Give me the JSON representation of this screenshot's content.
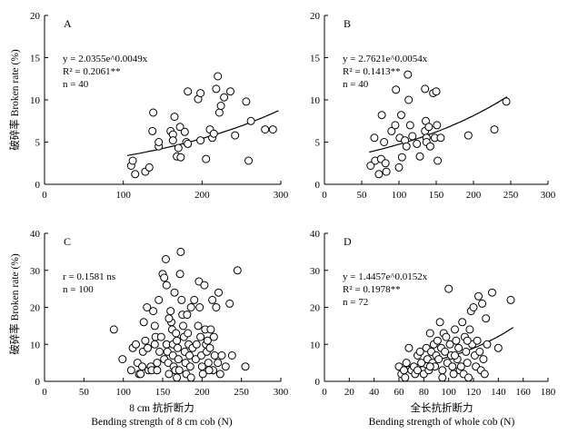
{
  "figure": {
    "ylabel": "破碎率 Broken rate (%)",
    "xlabel_left_cn": "8 cm 抗折断力",
    "xlabel_left_en": "Bending strength of 8 cm cob (N)",
    "xlabel_right_cn": "全长抗折断力",
    "xlabel_right_en": "Bending strength of whole cob (N)"
  },
  "chart_data": [
    {
      "type": "scatter",
      "panel": "A",
      "xlim": [
        0,
        300
      ],
      "ylim": [
        0,
        20
      ],
      "xticks": [
        0,
        100,
        200,
        300
      ],
      "yticks": [
        0,
        5,
        10,
        15,
        20
      ],
      "annotation": [
        "y = 2.0355e^0.0049x",
        "R² = 0.2061**",
        "n = 40"
      ],
      "fit": {
        "kind": "exp",
        "a": 2.0355,
        "b": 0.0049,
        "xrange": [
          105,
          297
        ]
      },
      "points": [
        [
          110,
          2.2
        ],
        [
          112,
          2.8
        ],
        [
          115,
          1.2
        ],
        [
          128,
          1.5
        ],
        [
          133,
          2.0
        ],
        [
          138,
          8.5
        ],
        [
          137,
          6.3
        ],
        [
          145,
          4.5
        ],
        [
          145,
          5.0
        ],
        [
          160,
          6.3
        ],
        [
          163,
          5.9
        ],
        [
          163,
          5.2
        ],
        [
          165,
          8.0
        ],
        [
          168,
          3.3
        ],
        [
          170,
          4.3
        ],
        [
          172,
          6.8
        ],
        [
          173,
          3.2
        ],
        [
          178,
          6.2
        ],
        [
          180,
          5.0
        ],
        [
          182,
          11.0
        ],
        [
          182,
          4.8
        ],
        [
          195,
          10.1
        ],
        [
          198,
          5.2
        ],
        [
          198,
          10.8
        ],
        [
          205,
          3.0
        ],
        [
          210,
          6.5
        ],
        [
          213,
          5.5
        ],
        [
          215,
          6.0
        ],
        [
          218,
          11.3
        ],
        [
          220,
          12.8
        ],
        [
          222,
          8.5
        ],
        [
          224,
          9.3
        ],
        [
          228,
          10.3
        ],
        [
          236,
          11.0
        ],
        [
          242,
          5.8
        ],
        [
          256,
          9.8
        ],
        [
          259,
          2.8
        ],
        [
          262,
          7.5
        ],
        [
          280,
          6.5
        ],
        [
          290,
          6.5
        ]
      ]
    },
    {
      "type": "scatter",
      "panel": "B",
      "xlim": [
        0,
        300
      ],
      "ylim": [
        0,
        20
      ],
      "xticks": [
        0,
        50,
        100,
        150,
        200,
        250,
        300
      ],
      "yticks": [
        0,
        5,
        10,
        15,
        20
      ],
      "annotation": [
        "y = 2.7621e^0.0054x",
        "R² = 0.1413**",
        "n = 40"
      ],
      "fit": {
        "kind": "exp",
        "a": 2.7621,
        "b": 0.0054,
        "xrange": [
          60,
          245
        ]
      },
      "points": [
        [
          62,
          2.2
        ],
        [
          67,
          5.5
        ],
        [
          68,
          2.8
        ],
        [
          73,
          1.2
        ],
        [
          76,
          3.0
        ],
        [
          77,
          8.2
        ],
        [
          80,
          5.0
        ],
        [
          82,
          2.5
        ],
        [
          83,
          1.5
        ],
        [
          90,
          6.3
        ],
        [
          95,
          7.0
        ],
        [
          96,
          11.2
        ],
        [
          100,
          2.0
        ],
        [
          101,
          5.5
        ],
        [
          103,
          8.2
        ],
        [
          104,
          3.2
        ],
        [
          108,
          5.2
        ],
        [
          110,
          4.5
        ],
        [
          112,
          13.0
        ],
        [
          113,
          10.0
        ],
        [
          115,
          7.0
        ],
        [
          118,
          5.7
        ],
        [
          124,
          4.8
        ],
        [
          128,
          3.3
        ],
        [
          135,
          6.3
        ],
        [
          135,
          11.3
        ],
        [
          136,
          7.5
        ],
        [
          137,
          5.5
        ],
        [
          137,
          5.0
        ],
        [
          140,
          6.8
        ],
        [
          142,
          4.5
        ],
        [
          146,
          10.8
        ],
        [
          148,
          5.5
        ],
        [
          150,
          11.0
        ],
        [
          151,
          7.0
        ],
        [
          152,
          2.8
        ],
        [
          156,
          5.5
        ],
        [
          193,
          5.8
        ],
        [
          228,
          6.5
        ],
        [
          244,
          9.8
        ]
      ]
    },
    {
      "type": "scatter",
      "panel": "C",
      "xlim": [
        0,
        300
      ],
      "ylim": [
        0,
        40
      ],
      "xticks": [
        0,
        50,
        100,
        150,
        200,
        250,
        300
      ],
      "yticks": [
        0,
        10,
        20,
        30,
        40
      ],
      "annotation": [
        "r = 0.1581 ns",
        "n = 100"
      ],
      "fit": null,
      "points": [
        [
          88,
          14
        ],
        [
          110,
          3
        ],
        [
          112,
          9
        ],
        [
          116,
          10
        ],
        [
          118,
          5
        ],
        [
          120,
          2
        ],
        [
          122,
          2
        ],
        [
          124,
          4
        ],
        [
          125,
          8
        ],
        [
          128,
          11
        ],
        [
          130,
          20
        ],
        [
          131,
          9
        ],
        [
          132,
          3
        ],
        [
          135,
          4
        ],
        [
          136,
          3
        ],
        [
          138,
          19
        ],
        [
          140,
          15
        ],
        [
          140,
          10
        ],
        [
          141,
          12
        ],
        [
          143,
          5
        ],
        [
          143,
          3
        ],
        [
          146,
          8
        ],
        [
          148,
          12
        ],
        [
          150,
          29
        ],
        [
          152,
          28
        ],
        [
          152,
          6
        ],
        [
          154,
          33
        ],
        [
          155,
          26
        ],
        [
          155,
          10
        ],
        [
          156,
          8
        ],
        [
          157,
          5
        ],
        [
          158,
          2
        ],
        [
          160,
          19
        ],
        [
          161,
          16
        ],
        [
          162,
          14
        ],
        [
          163,
          10
        ],
        [
          163,
          7
        ],
        [
          164,
          4
        ],
        [
          165,
          24
        ],
        [
          166,
          3
        ],
        [
          167,
          13
        ],
        [
          168,
          11
        ],
        [
          169,
          9
        ],
        [
          170,
          6
        ],
        [
          171,
          3
        ],
        [
          172,
          29
        ],
        [
          173,
          35
        ],
        [
          174,
          22
        ],
        [
          175,
          18
        ],
        [
          176,
          15
        ],
        [
          177,
          12
        ],
        [
          178,
          8
        ],
        [
          179,
          5
        ],
        [
          180,
          2
        ],
        [
          181,
          18
        ],
        [
          182,
          13
        ],
        [
          183,
          10
        ],
        [
          184,
          7
        ],
        [
          185,
          4
        ],
        [
          186,
          1
        ],
        [
          188,
          9
        ],
        [
          190,
          22
        ],
        [
          192,
          6
        ],
        [
          193,
          10
        ],
        [
          195,
          15
        ],
        [
          196,
          27
        ],
        [
          197,
          20
        ],
        [
          198,
          12
        ],
        [
          199,
          7
        ],
        [
          200,
          4
        ],
        [
          201,
          2
        ],
        [
          203,
          26
        ],
        [
          204,
          14
        ],
        [
          205,
          10
        ],
        [
          206,
          8
        ],
        [
          207,
          11
        ],
        [
          208,
          5
        ],
        [
          210,
          9
        ],
        [
          211,
          14
        ],
        [
          213,
          22
        ],
        [
          214,
          3
        ],
        [
          215,
          12
        ],
        [
          216,
          7
        ],
        [
          218,
          20
        ],
        [
          220,
          5
        ],
        [
          221,
          24
        ],
        [
          223,
          2
        ],
        [
          225,
          7
        ],
        [
          230,
          4
        ],
        [
          235,
          21
        ],
        [
          238,
          7
        ],
        [
          245,
          30
        ],
        [
          255,
          4
        ],
        [
          99,
          6
        ],
        [
          126,
          16
        ],
        [
          145,
          22
        ],
        [
          158,
          17
        ],
        [
          168,
          1
        ],
        [
          186,
          20
        ],
        [
          209,
          3
        ]
      ]
    },
    {
      "type": "scatter",
      "panel": "D",
      "xlim": [
        0,
        180
      ],
      "ylim": [
        0,
        40
      ],
      "xticks": [
        0,
        20,
        40,
        60,
        80,
        100,
        120,
        140,
        160,
        180
      ],
      "yticks": [
        0,
        10,
        20,
        30,
        40
      ],
      "annotation": [
        "y = 1.4457e^0.0152x",
        "R² = 0.1978**",
        "n = 72"
      ],
      "fit": {
        "kind": "exp",
        "a": 1.4457,
        "b": 0.0152,
        "xrange": [
          60,
          152
        ]
      },
      "points": [
        [
          60,
          4
        ],
        [
          62,
          2
        ],
        [
          64,
          3
        ],
        [
          65,
          1
        ],
        [
          66,
          5
        ],
        [
          68,
          9
        ],
        [
          70,
          3
        ],
        [
          72,
          4
        ],
        [
          73,
          2
        ],
        [
          75,
          7
        ],
        [
          77,
          8
        ],
        [
          78,
          5
        ],
        [
          79,
          3
        ],
        [
          80,
          2
        ],
        [
          82,
          9
        ],
        [
          83,
          6
        ],
        [
          84,
          3
        ],
        [
          85,
          13
        ],
        [
          86,
          8
        ],
        [
          87,
          5
        ],
        [
          88,
          10
        ],
        [
          89,
          4
        ],
        [
          90,
          7
        ],
        [
          91,
          11
        ],
        [
          92,
          6
        ],
        [
          93,
          16
        ],
        [
          94,
          9
        ],
        [
          95,
          3
        ],
        [
          96,
          13
        ],
        [
          97,
          8
        ],
        [
          98,
          12
        ],
        [
          99,
          5
        ],
        [
          100,
          25
        ],
        [
          101,
          10
        ],
        [
          102,
          7
        ],
        [
          103,
          4
        ],
        [
          104,
          2
        ],
        [
          105,
          14
        ],
        [
          106,
          11
        ],
        [
          107,
          6
        ],
        [
          108,
          9
        ],
        [
          109,
          3
        ],
        [
          110,
          4
        ],
        [
          111,
          16
        ],
        [
          112,
          2
        ],
        [
          113,
          12
        ],
        [
          114,
          8
        ],
        [
          115,
          5
        ],
        [
          116,
          1
        ],
        [
          117,
          14
        ],
        [
          118,
          19
        ],
        [
          119,
          10
        ],
        [
          120,
          20
        ],
        [
          121,
          7
        ],
        [
          122,
          4
        ],
        [
          123,
          11
        ],
        [
          124,
          23
        ],
        [
          125,
          8
        ],
        [
          126,
          3
        ],
        [
          127,
          21
        ],
        [
          128,
          6
        ],
        [
          129,
          2
        ],
        [
          130,
          17
        ],
        [
          131,
          10
        ],
        [
          135,
          24
        ],
        [
          140,
          9
        ],
        [
          150,
          22
        ],
        [
          95,
          1
        ],
        [
          115,
          11
        ],
        [
          85,
          4
        ],
        [
          75,
          3
        ],
        [
          105,
          7
        ]
      ]
    }
  ]
}
